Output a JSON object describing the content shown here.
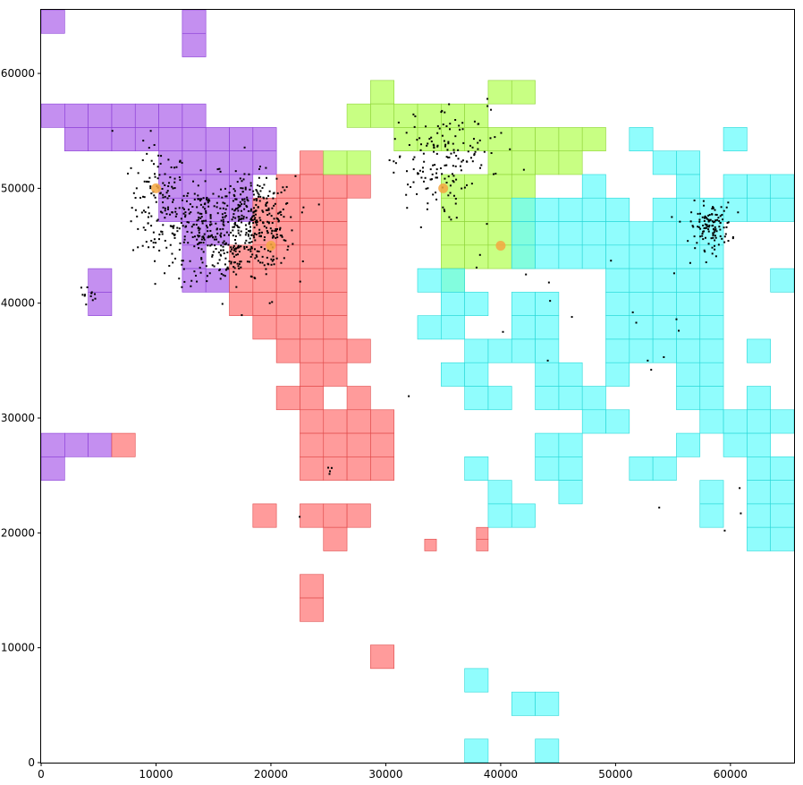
{
  "chart_data": {
    "type": "scatter",
    "title": "",
    "xlabel": "",
    "ylabel": "",
    "xlim": [
      0,
      65536
    ],
    "ylim": [
      0,
      65536
    ],
    "grid": false,
    "x_ticks": [
      0,
      10000,
      20000,
      30000,
      40000,
      50000,
      60000
    ],
    "y_ticks": [
      0,
      10000,
      20000,
      30000,
      40000,
      50000,
      60000
    ],
    "x_tick_labels": [
      "0",
      "10000",
      "20000",
      "30000",
      "40000",
      "50000",
      "60000"
    ],
    "y_tick_labels": [
      "0",
      "10000",
      "20000",
      "30000",
      "40000",
      "50000",
      "60000"
    ],
    "cell_size": 2048,
    "regions": [
      {
        "color": "#b06aeb",
        "edge": "#8a3fd6",
        "cells": [
          [
            0,
            31
          ],
          [
            6,
            31
          ],
          [
            6,
            30
          ],
          [
            0,
            27
          ],
          [
            1,
            27
          ],
          [
            2,
            27
          ],
          [
            3,
            27
          ],
          [
            4,
            27
          ],
          [
            5,
            27
          ],
          [
            6,
            27
          ],
          [
            1,
            26
          ],
          [
            2,
            26
          ],
          [
            3,
            26
          ],
          [
            4,
            26
          ],
          [
            5,
            26
          ],
          [
            6,
            26
          ],
          [
            7,
            26
          ],
          [
            8,
            26
          ],
          [
            9,
            26
          ],
          [
            5,
            25
          ],
          [
            6,
            25
          ],
          [
            7,
            25
          ],
          [
            8,
            25
          ],
          [
            9,
            25
          ],
          [
            5,
            24
          ],
          [
            6,
            24
          ],
          [
            7,
            24
          ],
          [
            8,
            24
          ],
          [
            5,
            23
          ],
          [
            6,
            23
          ],
          [
            7,
            23
          ],
          [
            8,
            23
          ],
          [
            6,
            22
          ],
          [
            7,
            22
          ],
          [
            6,
            21
          ],
          [
            6,
            20
          ],
          [
            7,
            20
          ],
          [
            2,
            20
          ],
          [
            2,
            19
          ],
          [
            0,
            13
          ],
          [
            1,
            13
          ],
          [
            2,
            13
          ],
          [
            0,
            12
          ]
        ]
      },
      {
        "color": "#ff7a7a",
        "edge": "#e04a4a",
        "cells": [
          [
            11,
            25
          ],
          [
            10,
            24
          ],
          [
            11,
            24
          ],
          [
            12,
            24
          ],
          [
            13,
            24
          ],
          [
            9,
            23
          ],
          [
            10,
            23
          ],
          [
            11,
            23
          ],
          [
            12,
            23
          ],
          [
            9,
            22
          ],
          [
            10,
            22
          ],
          [
            11,
            22
          ],
          [
            12,
            22
          ],
          [
            8,
            21
          ],
          [
            9,
            21
          ],
          [
            10,
            21
          ],
          [
            11,
            21
          ],
          [
            12,
            21
          ],
          [
            8,
            20
          ],
          [
            9,
            20
          ],
          [
            10,
            20
          ],
          [
            11,
            20
          ],
          [
            12,
            20
          ],
          [
            8,
            19
          ],
          [
            9,
            19
          ],
          [
            10,
            19
          ],
          [
            11,
            19
          ],
          [
            12,
            19
          ],
          [
            9,
            18
          ],
          [
            10,
            18
          ],
          [
            11,
            18
          ],
          [
            12,
            18
          ],
          [
            10,
            17
          ],
          [
            11,
            17
          ],
          [
            12,
            17
          ],
          [
            13,
            17
          ],
          [
            11,
            16
          ],
          [
            12,
            16
          ],
          [
            10,
            15
          ],
          [
            11,
            15
          ],
          [
            13,
            15
          ],
          [
            11,
            14
          ],
          [
            12,
            14
          ],
          [
            13,
            14
          ],
          [
            14,
            14
          ],
          [
            11,
            13
          ],
          [
            12,
            13
          ],
          [
            13,
            13
          ],
          [
            14,
            13
          ],
          [
            3,
            13
          ],
          [
            11,
            12
          ],
          [
            12,
            12
          ],
          [
            13,
            12
          ],
          [
            14,
            12
          ],
          [
            9,
            10
          ],
          [
            11,
            10
          ],
          [
            12,
            10
          ],
          [
            13,
            10
          ],
          [
            12,
            9
          ],
          [
            11,
            7
          ],
          [
            11,
            6
          ],
          [
            14,
            4
          ]
        ]
      },
      {
        "color": "#b6ff5a",
        "edge": "#8fd43a",
        "cells": [
          [
            12,
            25
          ],
          [
            13,
            25
          ],
          [
            14,
            28
          ],
          [
            13,
            27
          ],
          [
            14,
            27
          ],
          [
            15,
            27
          ],
          [
            16,
            27
          ],
          [
            17,
            27
          ],
          [
            18,
            27
          ],
          [
            19,
            28
          ],
          [
            20,
            28
          ],
          [
            18,
            26
          ],
          [
            19,
            26
          ],
          [
            20,
            26
          ],
          [
            21,
            26
          ],
          [
            22,
            26
          ],
          [
            23,
            26
          ],
          [
            15,
            26
          ],
          [
            16,
            26
          ],
          [
            17,
            26
          ],
          [
            19,
            25
          ],
          [
            20,
            25
          ],
          [
            21,
            25
          ],
          [
            22,
            25
          ],
          [
            17,
            24
          ],
          [
            18,
            24
          ],
          [
            19,
            24
          ],
          [
            20,
            24
          ],
          [
            17,
            23
          ],
          [
            18,
            23
          ],
          [
            19,
            23
          ],
          [
            20,
            23
          ],
          [
            17,
            22
          ],
          [
            18,
            22
          ],
          [
            19,
            22
          ],
          [
            20,
            22
          ],
          [
            17,
            21
          ],
          [
            18,
            21
          ],
          [
            19,
            21
          ],
          [
            20,
            21
          ],
          [
            17,
            20
          ]
        ]
      },
      {
        "color": "#6bfcfc",
        "edge": "#2ad8d8",
        "cells": [
          [
            25,
            26
          ],
          [
            26,
            25
          ],
          [
            27,
            25
          ],
          [
            29,
            26
          ],
          [
            30,
            24
          ],
          [
            31,
            24
          ],
          [
            23,
            24
          ],
          [
            27,
            24
          ],
          [
            29,
            24
          ],
          [
            30,
            24
          ],
          [
            31,
            24
          ],
          [
            28,
            23
          ],
          [
            20,
            23
          ],
          [
            21,
            23
          ],
          [
            22,
            23
          ],
          [
            23,
            23
          ],
          [
            24,
            23
          ],
          [
            26,
            23
          ],
          [
            27,
            23
          ],
          [
            28,
            23
          ],
          [
            29,
            23
          ],
          [
            30,
            23
          ],
          [
            31,
            23
          ],
          [
            20,
            22
          ],
          [
            21,
            22
          ],
          [
            22,
            22
          ],
          [
            23,
            22
          ],
          [
            24,
            22
          ],
          [
            25,
            22
          ],
          [
            26,
            22
          ],
          [
            27,
            22
          ],
          [
            28,
            22
          ],
          [
            20,
            21
          ],
          [
            21,
            21
          ],
          [
            22,
            21
          ],
          [
            23,
            21
          ],
          [
            24,
            21
          ],
          [
            25,
            21
          ],
          [
            26,
            21
          ],
          [
            27,
            21
          ],
          [
            28,
            21
          ],
          [
            16,
            20
          ],
          [
            17,
            20
          ],
          [
            24,
            20
          ],
          [
            25,
            20
          ],
          [
            26,
            20
          ],
          [
            27,
            20
          ],
          [
            28,
            20
          ],
          [
            31,
            20
          ],
          [
            17,
            19
          ],
          [
            18,
            19
          ],
          [
            20,
            19
          ],
          [
            21,
            19
          ],
          [
            24,
            19
          ],
          [
            25,
            19
          ],
          [
            26,
            19
          ],
          [
            27,
            19
          ],
          [
            28,
            19
          ],
          [
            16,
            18
          ],
          [
            17,
            18
          ],
          [
            20,
            18
          ],
          [
            21,
            18
          ],
          [
            24,
            18
          ],
          [
            25,
            18
          ],
          [
            26,
            18
          ],
          [
            27,
            18
          ],
          [
            28,
            18
          ],
          [
            18,
            17
          ],
          [
            19,
            17
          ],
          [
            20,
            17
          ],
          [
            21,
            17
          ],
          [
            24,
            17
          ],
          [
            25,
            17
          ],
          [
            26,
            17
          ],
          [
            27,
            17
          ],
          [
            28,
            17
          ],
          [
            30,
            17
          ],
          [
            21,
            16
          ],
          [
            22,
            16
          ],
          [
            24,
            16
          ],
          [
            27,
            16
          ],
          [
            28,
            16
          ],
          [
            17,
            16
          ],
          [
            18,
            16
          ],
          [
            22,
            15
          ],
          [
            23,
            15
          ],
          [
            27,
            15
          ],
          [
            28,
            15
          ],
          [
            30,
            15
          ],
          [
            18,
            15
          ],
          [
            19,
            15
          ],
          [
            21,
            15
          ],
          [
            23,
            14
          ],
          [
            24,
            14
          ],
          [
            28,
            14
          ],
          [
            29,
            14
          ],
          [
            30,
            14
          ],
          [
            31,
            14
          ],
          [
            21,
            13
          ],
          [
            22,
            13
          ],
          [
            27,
            13
          ],
          [
            29,
            13
          ],
          [
            30,
            13
          ],
          [
            32,
            13
          ],
          [
            18,
            12
          ],
          [
            21,
            12
          ],
          [
            22,
            12
          ],
          [
            25,
            12
          ],
          [
            26,
            12
          ],
          [
            30,
            12
          ],
          [
            31,
            12
          ],
          [
            32,
            12
          ],
          [
            19,
            11
          ],
          [
            22,
            11
          ],
          [
            28,
            11
          ],
          [
            30,
            11
          ],
          [
            31,
            11
          ],
          [
            32,
            11
          ],
          [
            19,
            10
          ],
          [
            20,
            10
          ],
          [
            28,
            10
          ],
          [
            30,
            10
          ],
          [
            31,
            10
          ],
          [
            32,
            10
          ],
          [
            30,
            9
          ],
          [
            31,
            9
          ],
          [
            32,
            9
          ],
          [
            32,
            8
          ],
          [
            18,
            3
          ],
          [
            20,
            2
          ],
          [
            21,
            2
          ],
          [
            18,
            0
          ],
          [
            21,
            0
          ]
        ]
      }
    ],
    "extra_cells_half": [
      {
        "color": "#ff7a7a",
        "edge": "#e04a4a",
        "cells": [
          [
            18.5,
            9.5
          ],
          [
            18.5,
            9.0
          ],
          [
            16.3,
            9.0
          ]
        ]
      },
      {
        "color": "#b06aeb",
        "edge": "#8a3fd6",
        "cells": []
      }
    ],
    "highlight_points": [
      [
        10000,
        50000
      ],
      [
        20000,
        45000
      ],
      [
        35000,
        50000
      ],
      [
        40000,
        45000
      ]
    ],
    "highlight_color": "#f5a742",
    "point_clusters": [
      {
        "cx": 10300,
        "cy": 48500,
        "sx": 1200,
        "sy": 2600,
        "n": 130
      },
      {
        "cx": 14000,
        "cy": 47500,
        "sx": 1700,
        "sy": 1800,
        "n": 160
      },
      {
        "cx": 18500,
        "cy": 47000,
        "sx": 1800,
        "sy": 2000,
        "n": 320
      },
      {
        "cx": 16200,
        "cy": 44500,
        "sx": 2200,
        "sy": 1600,
        "n": 120
      },
      {
        "cx": 33800,
        "cy": 51500,
        "sx": 1600,
        "sy": 2200,
        "n": 110
      },
      {
        "cx": 37000,
        "cy": 53500,
        "sx": 2200,
        "sy": 2000,
        "n": 60
      },
      {
        "cx": 58300,
        "cy": 46700,
        "sx": 900,
        "sy": 1000,
        "n": 120
      },
      {
        "cx": 4100,
        "cy": 40800,
        "sx": 350,
        "sy": 350,
        "n": 12
      },
      {
        "cx": 25000,
        "cy": 25300,
        "sx": 250,
        "sy": 250,
        "n": 4
      }
    ],
    "scattered_points": [
      [
        6200,
        55000
      ],
      [
        19900,
        40000
      ],
      [
        20100,
        40100
      ],
      [
        22500,
        21400
      ],
      [
        40200,
        37500
      ],
      [
        42200,
        42500
      ],
      [
        44200,
        41800
      ],
      [
        44300,
        40200
      ],
      [
        44100,
        35000
      ],
      [
        49600,
        43700
      ],
      [
        51500,
        39200
      ],
      [
        51800,
        38300
      ],
      [
        53100,
        34200
      ],
      [
        54200,
        35300
      ],
      [
        55300,
        38600
      ],
      [
        55500,
        37600
      ],
      [
        55100,
        42600
      ],
      [
        56500,
        43500
      ],
      [
        54900,
        47500
      ],
      [
        53800,
        22200
      ],
      [
        59500,
        20200
      ],
      [
        60900,
        21700
      ],
      [
        60800,
        23900
      ],
      [
        46200,
        38800
      ],
      [
        52800,
        35000
      ],
      [
        38800,
        46900
      ],
      [
        38200,
        44200
      ],
      [
        37900,
        43100
      ],
      [
        32000,
        31900
      ],
      [
        30800,
        54300
      ],
      [
        34100,
        52000
      ],
      [
        11400,
        44300
      ],
      [
        9200,
        53000
      ],
      [
        11600,
        51800
      ]
    ]
  }
}
